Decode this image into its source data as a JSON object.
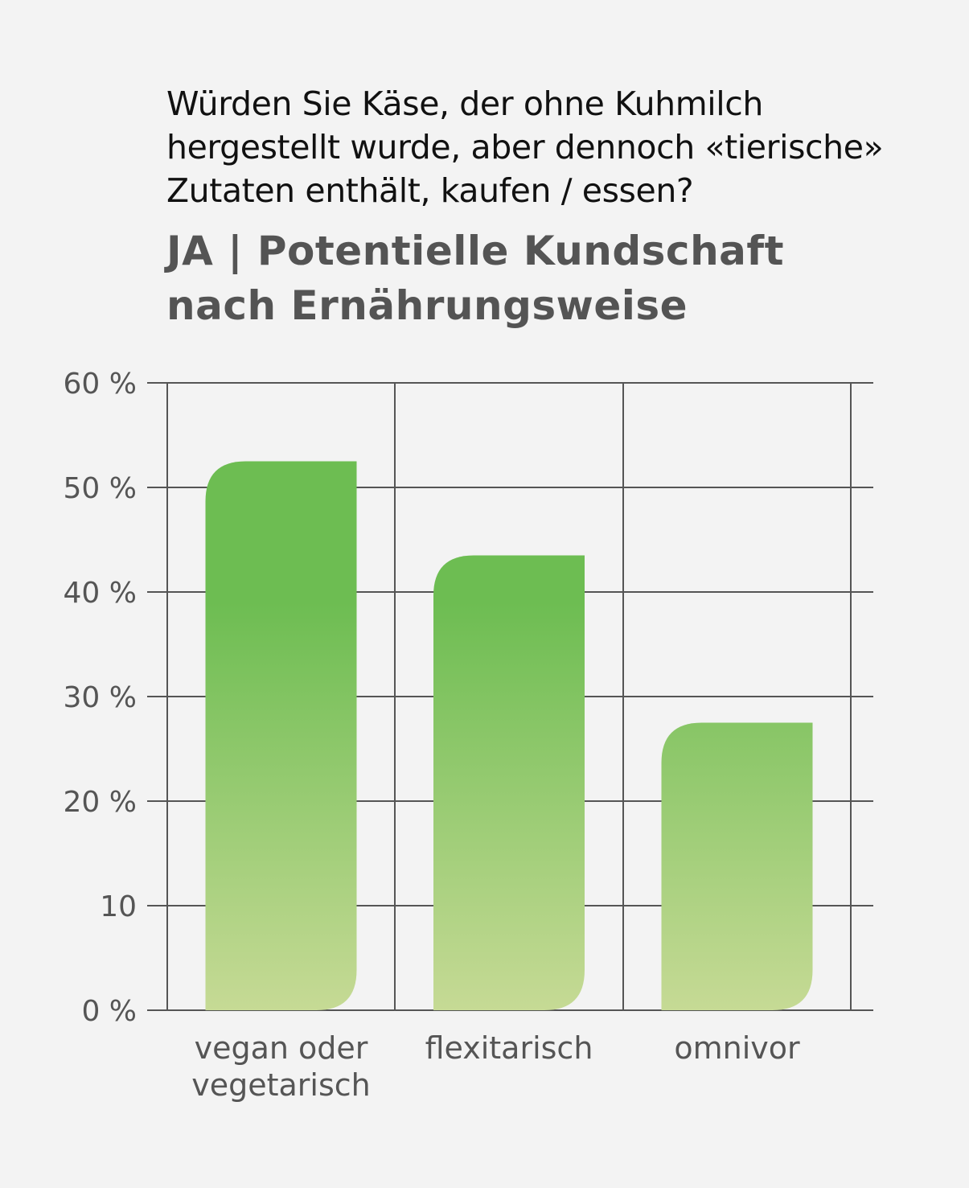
{
  "question": "Würden Sie Käse, der ohne Kuhmilch\nhergestellt wurde, aber dennoch «tierische»\nZutaten enthält, kaufen / essen?",
  "colors": {
    "background": "#f3f3f3",
    "bar_top": "#6dbd52",
    "bar_bottom": "#c6da95",
    "grid": "#555555",
    "text": "#555555",
    "title": "#545454"
  },
  "chart_data": {
    "type": "bar",
    "title": "JA | Potentielle Kundschaft\nnach Ernährungsweise",
    "categories": [
      "vegan oder\nvegetarisch",
      "flexitarisch",
      "omnivor"
    ],
    "values": [
      52.5,
      43.5,
      27.5
    ],
    "ylim": [
      0,
      60
    ],
    "yticks": [
      {
        "value": 0,
        "label": "0 %"
      },
      {
        "value": 10,
        "label": "10"
      },
      {
        "value": 20,
        "label": "20 %"
      },
      {
        "value": 30,
        "label": "30 %"
      },
      {
        "value": 40,
        "label": "40 %"
      },
      {
        "value": 50,
        "label": "50 %"
      },
      {
        "value": 60,
        "label": "60 %"
      }
    ],
    "xlabel": "",
    "ylabel": "",
    "grid": true,
    "legend": false
  }
}
